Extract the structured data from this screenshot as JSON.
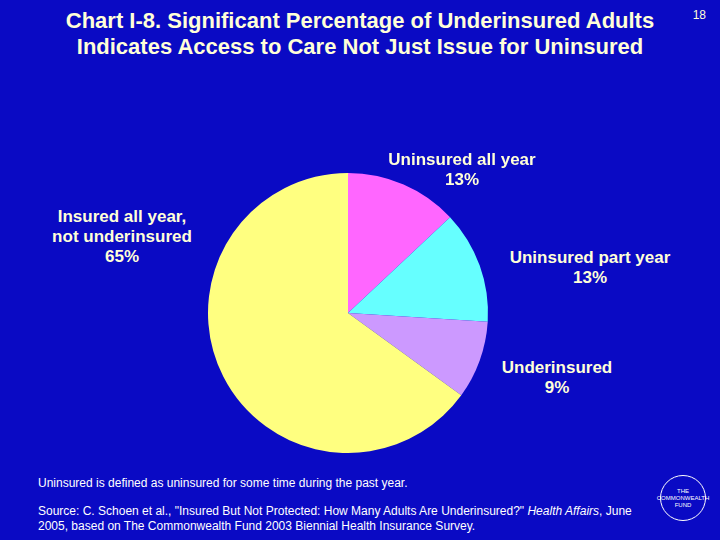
{
  "chart_data": {
    "type": "pie",
    "title": "Chart I-8. Significant Percentage of Underinsured Adults Indicates Access to Care Not Just Issue for Uninsured",
    "categories": [
      "Uninsured all year",
      "Uninsured part year",
      "Underinsured",
      "Insured all year,\nnot underinsured"
    ],
    "values": [
      13,
      13,
      9,
      65
    ],
    "value_labels": [
      "13%",
      "13%",
      "9%",
      "65%"
    ],
    "colors": [
      "#ff66ff",
      "#66ffff",
      "#cc99ff",
      "#ffff80"
    ],
    "data_labels": true,
    "page_number": "18",
    "note": "Uninsured is defined as uninsured for some time during the past year.",
    "source": {
      "before": "Source: C. Schoen et al., \"Insured But Not Protected: How Many Adults Are Underinsured?\" ",
      "italic": "Health Affairs",
      "after": ", June 2005, based on The Commonwealth Fund 2003 Biennial Health Insurance Survey."
    },
    "logo": "THE COMMONWEALTH FUND"
  }
}
